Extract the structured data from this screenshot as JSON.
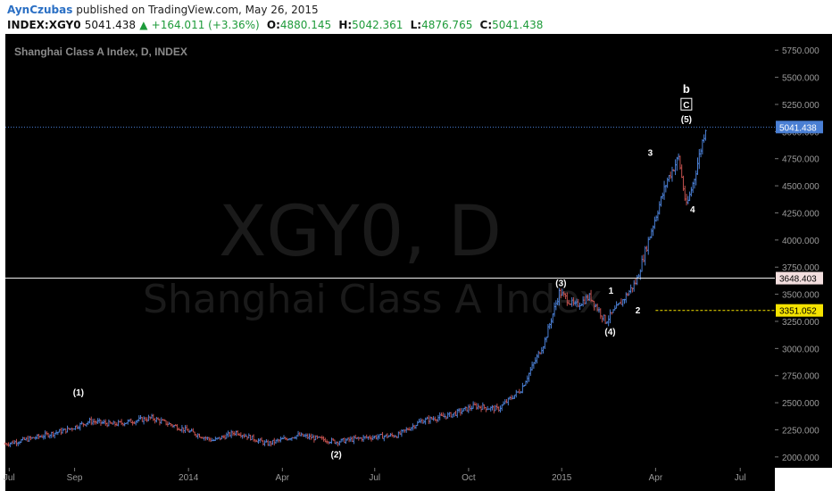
{
  "header": {
    "author": "AynCzubas",
    "published_text": "published on TradingView.com, May 26, 2015",
    "symbol": "INDEX:XGY0",
    "last": "5041.438",
    "change": "+164.011 (+3.36%)",
    "open_label": "O:",
    "open": "4880.145",
    "high_label": "H:",
    "high": "5042.361",
    "low_label": "L:",
    "low": "4876.765",
    "close_label": "C:",
    "close": "5041.438"
  },
  "legend": "Shanghai Class A Index, D, INDEX",
  "watermark": {
    "symbol": "XGY0, D",
    "name": "Shanghai Class A Index"
  },
  "colors": {
    "background": "#000000",
    "up": "#4a7fd4",
    "down": "#c0504d",
    "last_line": "#4a7fd4",
    "h_line": "#ffffff",
    "target_line": "#f5e300"
  },
  "chart_data": {
    "type": "candlestick",
    "price_axis": {
      "min": 1900,
      "max": 5900,
      "ticks": [
        "2000.000",
        "2250.000",
        "2500.000",
        "2750.000",
        "3000.000",
        "3250.000",
        "3500.000",
        "3750.000",
        "4000.000",
        "4250.000",
        "4500.000",
        "4750.000",
        "5000.000",
        "5250.000",
        "5500.000",
        "5750.000"
      ]
    },
    "time_axis": {
      "labels": [
        "Jul",
        "Sep",
        "2014",
        "Apr",
        "Jul",
        "Oct",
        "2015",
        "Apr",
        "Jul"
      ]
    },
    "price_trajectory": [
      {
        "t": 0.0,
        "p": 2120
      },
      {
        "t": 0.04,
        "p": 2180
      },
      {
        "t": 0.08,
        "p": 2250
      },
      {
        "t": 0.11,
        "p": 2330
      },
      {
        "t": 0.14,
        "p": 2300
      },
      {
        "t": 0.19,
        "p": 2360
      },
      {
        "t": 0.23,
        "p": 2260
      },
      {
        "t": 0.27,
        "p": 2150
      },
      {
        "t": 0.3,
        "p": 2230
      },
      {
        "t": 0.34,
        "p": 2120
      },
      {
        "t": 0.38,
        "p": 2200
      },
      {
        "t": 0.43,
        "p": 2140
      },
      {
        "t": 0.47,
        "p": 2180
      },
      {
        "t": 0.51,
        "p": 2200
      },
      {
        "t": 0.54,
        "p": 2330
      },
      {
        "t": 0.58,
        "p": 2390
      },
      {
        "t": 0.61,
        "p": 2470
      },
      {
        "t": 0.64,
        "p": 2440
      },
      {
        "t": 0.67,
        "p": 2620
      },
      {
        "t": 0.7,
        "p": 3050
      },
      {
        "t": 0.72,
        "p": 3520
      },
      {
        "t": 0.74,
        "p": 3390
      },
      {
        "t": 0.76,
        "p": 3480
      },
      {
        "t": 0.78,
        "p": 3250
      },
      {
        "t": 0.8,
        "p": 3420
      },
      {
        "t": 0.82,
        "p": 3620
      },
      {
        "t": 0.84,
        "p": 4100
      },
      {
        "t": 0.86,
        "p": 4550
      },
      {
        "t": 0.875,
        "p": 4760
      },
      {
        "t": 0.885,
        "p": 4300
      },
      {
        "t": 0.895,
        "p": 4560
      },
      {
        "t": 0.91,
        "p": 5041
      }
    ],
    "last_price": {
      "value": 5041.438,
      "label": "5041.438"
    },
    "levels": [
      {
        "value": 3648.403,
        "label": "3648.403",
        "style": "solid-white"
      },
      {
        "value": 3351.052,
        "label": "3351.052",
        "style": "dashed-yellow"
      }
    ],
    "wave_labels": [
      {
        "text": "(1)",
        "t": 0.095,
        "p": 2590
      },
      {
        "text": "(2)",
        "t": 0.43,
        "p": 2020
      },
      {
        "text": "(3)",
        "t": 0.722,
        "p": 3600
      },
      {
        "text": "(4)",
        "t": 0.786,
        "p": 3150
      },
      {
        "text": "1",
        "t": 0.787,
        "p": 3530
      },
      {
        "text": "2",
        "t": 0.822,
        "p": 3350
      },
      {
        "text": "3",
        "t": 0.838,
        "p": 4800
      },
      {
        "text": "4",
        "t": 0.893,
        "p": 4280
      },
      {
        "text": "(5)",
        "t": 0.885,
        "p": 5110
      },
      {
        "text": "C",
        "t": 0.885,
        "p": 5240,
        "boxed": true
      },
      {
        "text": "b",
        "t": 0.885,
        "p": 5380
      }
    ]
  }
}
